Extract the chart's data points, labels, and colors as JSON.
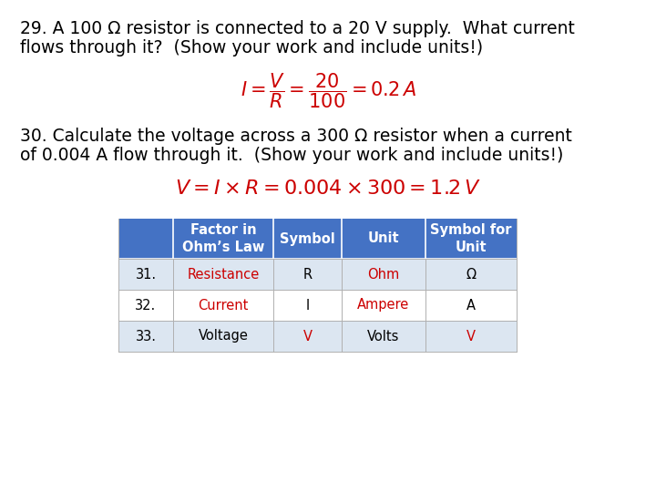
{
  "background_color": "#ffffff",
  "q29_text_line1": "29. A 100 Ω resistor is connected to a 20 V supply.  What current",
  "q29_text_line2": "flows through it?  (Show your work and include units!)",
  "q30_text_line1": "30. Calculate the voltage across a 300 Ω resistor when a current",
  "q30_text_line2": "of 0.004 A flow through it.  (Show your work and include units!)",
  "formula_color": "#cc0000",
  "text_color": "#000000",
  "header_bg": "#4472c4",
  "header_fg": "#ffffff",
  "row_bg_light": "#dce6f1",
  "row_bg_white": "#ffffff",
  "table_headers": [
    "",
    "Factor in\nOhm’s Law",
    "Symbol",
    "Unit",
    "Symbol for\nUnit"
  ],
  "table_rows": [
    [
      "31.",
      "Resistance",
      "R",
      "Ohm",
      "Ω"
    ],
    [
      "32.",
      "Current",
      "I",
      "Ampere",
      "A"
    ],
    [
      "33.",
      "Voltage",
      "V",
      "Volts",
      "V"
    ]
  ],
  "text_fontsize": 13.5,
  "formula_fontsize": 15,
  "table_fontsize": 10.5
}
